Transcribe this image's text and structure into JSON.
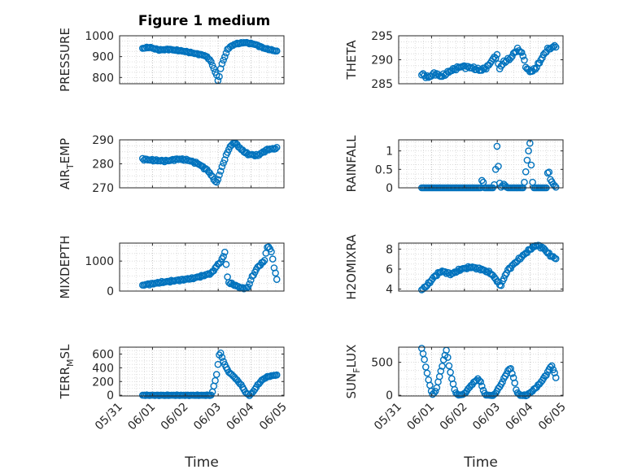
{
  "figure_title": "Figure 1 medium",
  "colors": {
    "marker": "#0072BD",
    "axis": "#262626",
    "grid": "#cfcfcf"
  },
  "chart_data": [
    {
      "type": "scatter",
      "title": "Figure 1 medium",
      "ylabel": "PRESSURE",
      "xlim": [
        "05/31",
        "06/05"
      ],
      "ylim": [
        770,
        1000
      ],
      "yticks": [
        800,
        900,
        1000
      ],
      "x_start": "05/31",
      "x": [],
      "y": [],
      "grid": true
    },
    {
      "type": "scatter",
      "title": "",
      "ylabel": "THETA",
      "xlim": [
        "05/31",
        "06/05"
      ],
      "ylim": [
        285,
        295
      ],
      "yticks": [
        285,
        290,
        295
      ],
      "x": [],
      "y": [],
      "grid": true
    },
    {
      "type": "scatter",
      "title": "",
      "ylabel": "AIR_T_EMP",
      "ylabel_main": "AIR",
      "ylabel_sub": "T",
      "ylabel_tail": "EMP",
      "xlim": [
        "05/31",
        "06/05"
      ],
      "ylim": [
        270,
        290
      ],
      "yticks": [
        270,
        280,
        290
      ],
      "x": [],
      "y": [],
      "grid": true
    },
    {
      "type": "scatter",
      "title": "",
      "ylabel": "RAINFALL",
      "xlim": [
        "05/31",
        "06/05"
      ],
      "ylim": [
        0,
        1.3
      ],
      "yticks": [
        0,
        0.5,
        1
      ],
      "x": [],
      "y": [],
      "grid": true
    },
    {
      "type": "scatter",
      "title": "",
      "ylabel": "MIXDEPTH",
      "xlim": [
        "05/31",
        "06/05"
      ],
      "ylim": [
        0,
        1600
      ],
      "yticks": [
        0,
        1000
      ],
      "x": [],
      "y": [],
      "grid": true
    },
    {
      "type": "scatter",
      "title": "",
      "ylabel": "H2OMIXRA",
      "xlim": [
        "05/31",
        "06/05"
      ],
      "ylim": [
        3.8,
        8.6
      ],
      "yticks": [
        4,
        6,
        8
      ],
      "x": [],
      "y": [],
      "grid": true
    },
    {
      "type": "scatter",
      "title": "",
      "ylabel": "TERR_M_SL",
      "ylabel_main": "TERR",
      "ylabel_sub": "M",
      "ylabel_tail": "SL",
      "xlim": [
        "05/31",
        "06/05"
      ],
      "ylim": [
        -10,
        700
      ],
      "yticks": [
        0,
        200,
        400,
        600
      ],
      "xticks": [
        "05/31",
        "06/01",
        "06/02",
        "06/03",
        "06/04",
        "06/05"
      ],
      "xlabel": "Time",
      "x": [],
      "y": [],
      "grid": true
    },
    {
      "type": "scatter",
      "title": "",
      "ylabel": "SUN_F_LUX",
      "ylabel_main": "SUN",
      "ylabel_sub": "F",
      "ylabel_tail": "LUX",
      "xlim": [
        "05/31",
        "06/05"
      ],
      "ylim": [
        -10,
        730
      ],
      "yticks": [
        0,
        500
      ],
      "xticks": [
        "05/31",
        "06/01",
        "06/02",
        "06/03",
        "06/04",
        "06/05"
      ],
      "xlabel": "Time",
      "x": [],
      "y": [],
      "grid": true
    }
  ]
}
